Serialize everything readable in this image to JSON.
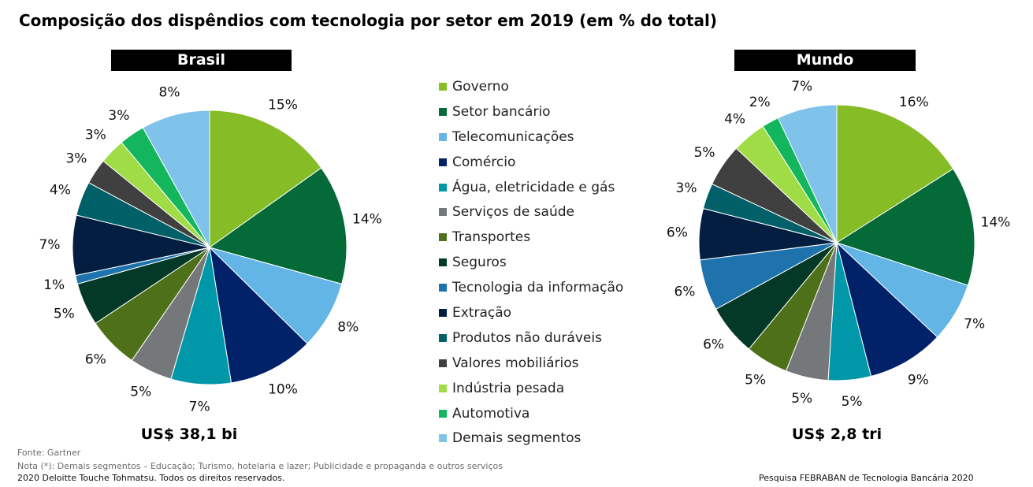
{
  "title": "Composição dos dispêndios com tecnologia por setor em 2019 (em % do total)",
  "chart_data": [
    {
      "type": "pie",
      "title": "Brasil",
      "total": "US$ 38,1 bi",
      "labels": [
        "Governo",
        "Setor bancário",
        "Telecomunicações",
        "Comércio",
        "Água, eletricidade e gás",
        "Serviços de saúde",
        "Transportes",
        "Seguros",
        "Tecnologia da informação",
        "Extração",
        "Produtos não duráveis",
        "Valores mobiliários",
        "Indústria pesada",
        "Automotiva",
        "Demais segmentos"
      ],
      "values": [
        15,
        14,
        8,
        10,
        7,
        5,
        6,
        5,
        1,
        7,
        4,
        3,
        3,
        3,
        8
      ],
      "value_labels": [
        "15%",
        "14%",
        "8%",
        "10%",
        "7%",
        "5%",
        "6%",
        "5%",
        "1%",
        "7%",
        "4%",
        "3%",
        "3%",
        "3%",
        "8%"
      ]
    },
    {
      "type": "pie",
      "title": "Mundo",
      "total": "US$ 2,8 tri",
      "labels": [
        "Governo",
        "Setor bancário",
        "Telecomunicações",
        "Comércio",
        "Água, eletricidade e gás",
        "Serviços de saúde",
        "Transportes",
        "Seguros",
        "Tecnologia da informação",
        "Extração",
        "Produtos não duráveis",
        "Valores mobiliários",
        "Indústria pesada",
        "Automotiva",
        "Demais segmentos"
      ],
      "values": [
        16,
        14,
        7,
        9,
        5,
        5,
        5,
        6,
        6,
        6,
        3,
        5,
        4,
        2,
        7
      ],
      "value_labels": [
        "16%",
        "14%",
        "7%",
        "9%",
        "5%",
        "5%",
        "5%",
        "6%",
        "6%",
        "6%",
        "3%",
        "5%",
        "4%",
        "2%",
        "7%"
      ]
    }
  ],
  "legend": [
    {
      "label": "Governo",
      "color": "#86bc25"
    },
    {
      "label": "Setor bancário",
      "color": "#046a38"
    },
    {
      "label": "Telecomunicações",
      "color": "#62b5e5"
    },
    {
      "label": "Comércio",
      "color": "#012169"
    },
    {
      "label": "Água, eletricidade e gás",
      "color": "#0097a9"
    },
    {
      "label": "Serviços de saúde",
      "color": "#75787b"
    },
    {
      "label": "Transportes",
      "color": "#4e7018"
    },
    {
      "label": "Seguros",
      "color": "#043927"
    },
    {
      "label": "Tecnologia da informação",
      "color": "#1e73ad"
    },
    {
      "label": "Extração",
      "color": "#041e42"
    },
    {
      "label": "Produtos não duráveis",
      "color": "#005f67"
    },
    {
      "label": "Valores mobiliários",
      "color": "#404040"
    },
    {
      "label": "Indústria pesada",
      "color": "#a0dc45"
    },
    {
      "label": "Automotiva",
      "color": "#13b65c"
    },
    {
      "label": "Demais segmentos",
      "color": "#7fc2ea"
    }
  ],
  "footer": {
    "source": "Fonte: Gartner",
    "note": "Nota (*): Demais segmentos – Educação; Turismo, hotelaria e lazer; Publicidade e propaganda e outros serviços",
    "copyright": "2020 Deloitte Touche Tohmatsu. Todos os direitos reservados.",
    "survey": "Pesquisa FEBRABAN de Tecnologia Bancária 2020"
  }
}
